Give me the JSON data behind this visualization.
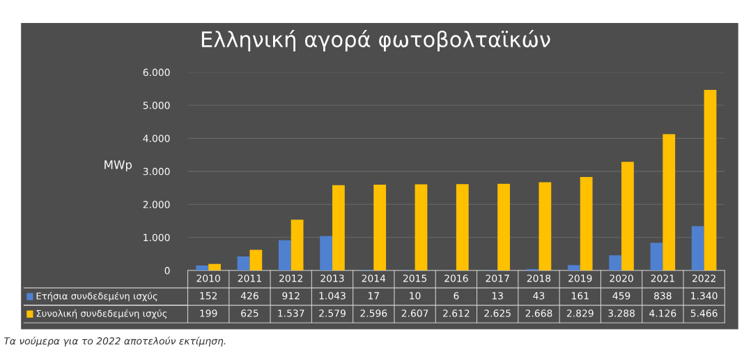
{
  "chart_data": {
    "type": "bar",
    "title": "Ελληνική αγορά φωτοβολταϊκών",
    "ylabel": "MWp",
    "categories": [
      "2010",
      "2011",
      "2012",
      "2013",
      "2014",
      "2015",
      "2016",
      "2017",
      "2018",
      "2019",
      "2020",
      "2021",
      "2022"
    ],
    "series": [
      {
        "name": "Ετήσια συνδεδεμένη ισχύς",
        "color": "#4f81d0",
        "values": [
          152,
          426,
          912,
          1043,
          17,
          10,
          6,
          13,
          43,
          161,
          459,
          838,
          1340
        ],
        "value_labels": [
          "152",
          "426",
          "912",
          "1.043",
          "17",
          "10",
          "6",
          "13",
          "43",
          "161",
          "459",
          "838",
          "1.340"
        ]
      },
      {
        "name": "Συνολική συνδεδεμένη ισχύς",
        "color": "#ffc000",
        "values": [
          199,
          625,
          1537,
          2579,
          2596,
          2607,
          2612,
          2625,
          2668,
          2829,
          3288,
          4126,
          5466
        ],
        "value_labels": [
          "199",
          "625",
          "1.537",
          "2.579",
          "2.596",
          "2.607",
          "2.612",
          "2.625",
          "2.668",
          "2.829",
          "3.288",
          "4.126",
          "5.466"
        ]
      }
    ],
    "ylim": [
      0,
      6000
    ],
    "yticks": [
      0,
      {
        "value": 1000,
        "label": "1.000"
      },
      {
        "value": 2000,
        "label": "2.000"
      },
      {
        "value": 3000,
        "label": "3.000"
      },
      {
        "value": 4000,
        "label": "4.000"
      },
      {
        "value": 5000,
        "label": "5.000"
      },
      {
        "value": 6000,
        "label": "6.000"
      }
    ],
    "grid": "y",
    "legend": "bottom",
    "annotations": [
      "Τα νούμερα για το 2022 αποτελούν εκτίμηση."
    ]
  }
}
